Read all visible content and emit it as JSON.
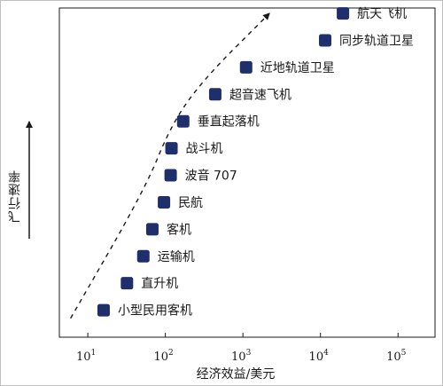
{
  "chart_data": {
    "type": "scatter",
    "xlabel": "经济效益/美元",
    "ylabel": "飞行速率",
    "x_scale": "log",
    "x_ticks": [
      {
        "value": 10,
        "base": "10",
        "exp": "1"
      },
      {
        "value": 100,
        "base": "10",
        "exp": "2"
      },
      {
        "value": 1000,
        "base": "10",
        "exp": "3"
      },
      {
        "value": 10000,
        "base": "10",
        "exp": "4"
      },
      {
        "value": 100000,
        "base": "10",
        "exp": "5"
      }
    ],
    "xlim": [
      4.3,
      300000
    ],
    "ylim": [
      0,
      12.2
    ],
    "points": [
      {
        "label": "小型民用客机",
        "x": 16,
        "y": 1
      },
      {
        "label": "直升机",
        "x": 32,
        "y": 2
      },
      {
        "label": "运输机",
        "x": 52,
        "y": 3
      },
      {
        "label": "客机",
        "x": 68,
        "y": 4
      },
      {
        "label": "民航",
        "x": 96,
        "y": 5
      },
      {
        "label": "波音 707",
        "x": 117,
        "y": 6
      },
      {
        "label": "战斗机",
        "x": 120,
        "y": 7
      },
      {
        "label": "垂直起落机",
        "x": 170,
        "y": 8
      },
      {
        "label": "超音速飞机",
        "x": 440,
        "y": 9
      },
      {
        "label": "近地轨道卫星",
        "x": 1100,
        "y": 10
      },
      {
        "label": "同步轨道卫星",
        "x": 11500,
        "y": 11
      },
      {
        "label": "航天飞机",
        "x": 19500,
        "y": 12
      }
    ],
    "trend_arrow": [
      [
        6,
        0.7
      ],
      [
        55,
        5.5
      ],
      [
        120,
        7.9
      ],
      [
        320,
        9.6
      ],
      [
        2200,
        12
      ]
    ],
    "marker_color": "#1f2f6b",
    "axis_color": "#1a1a1a",
    "grid": false,
    "legend": "none"
  }
}
